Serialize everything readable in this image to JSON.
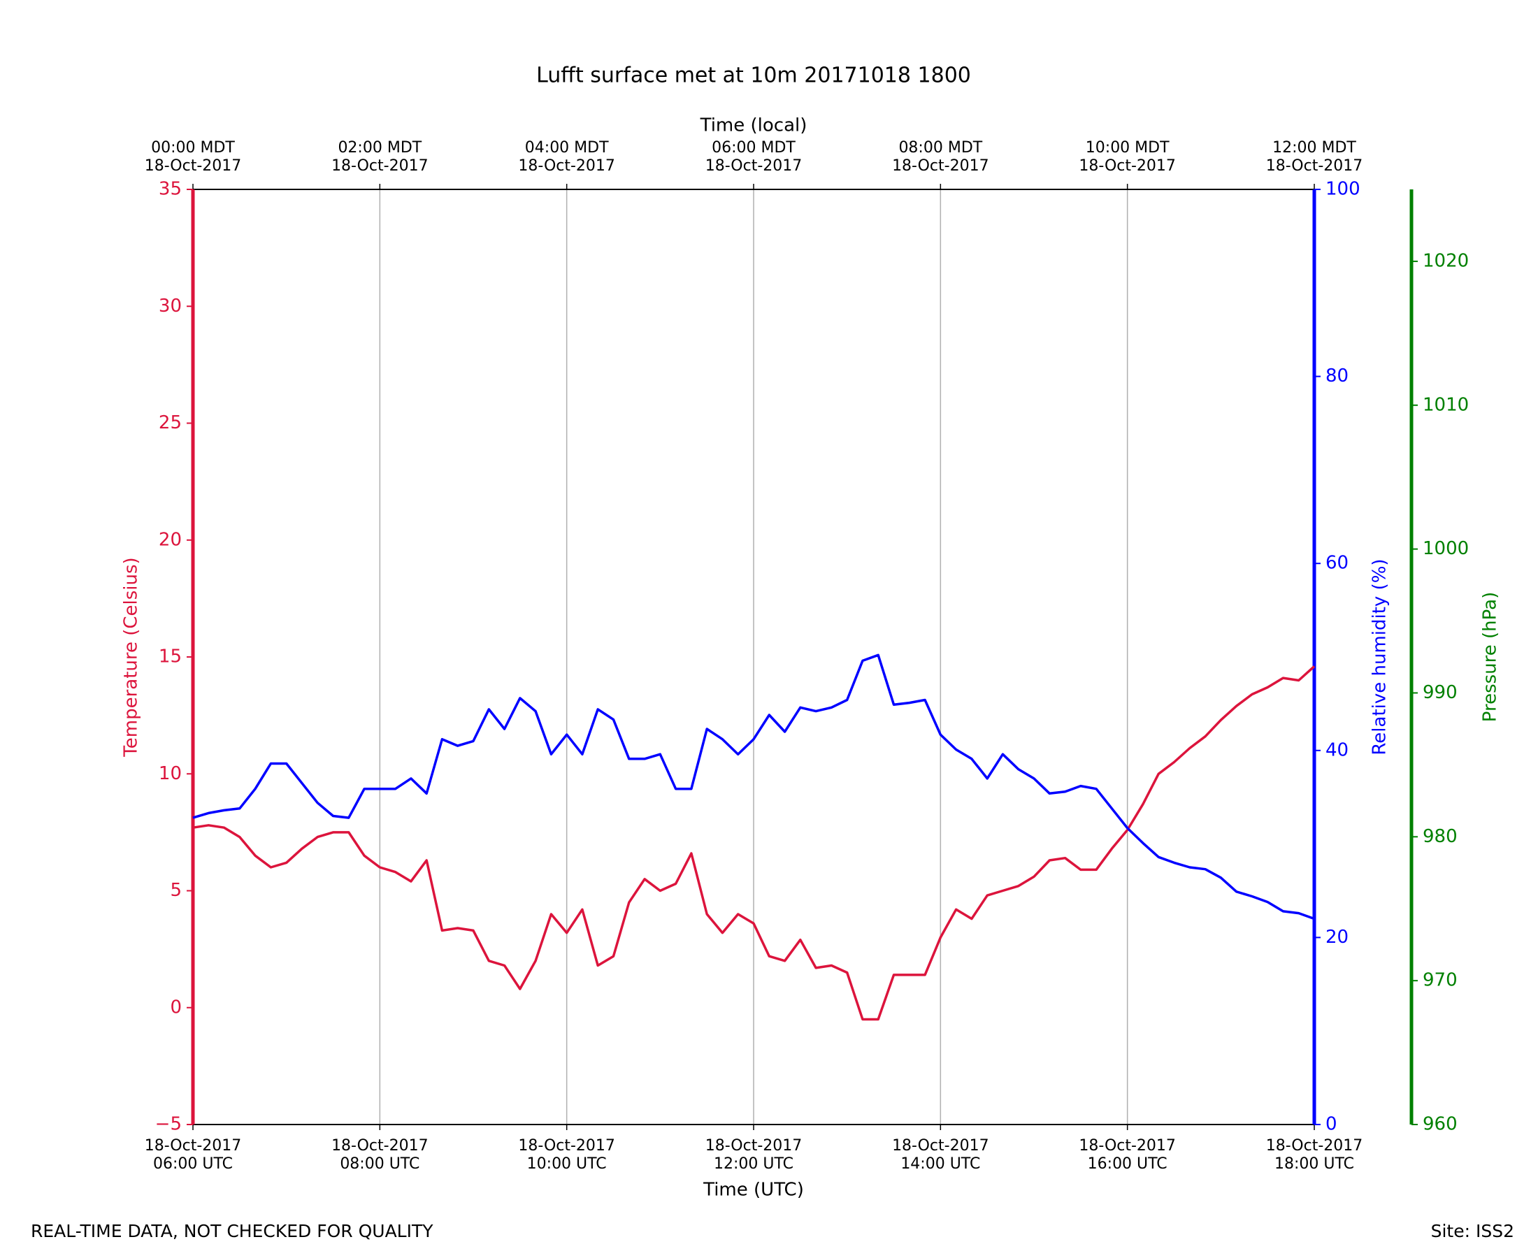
{
  "chart_data": {
    "type": "line",
    "title": "Lufft surface met at 10m 20171018 1800",
    "xlabel": "Time (UTC)",
    "x2label": "Time (local)",
    "ylabel": "Temperature (Celsius)",
    "y2label": "Relative humidity (%)",
    "y3label": "Pressure (hPa)",
    "ycolor": "#dc143c",
    "y2color": "#0000ff",
    "y3color": "#008000",
    "grid": true,
    "x": [
      "18-Oct-2017 06:00",
      "18-Oct-2017 06:10",
      "18-Oct-2017 06:20",
      "18-Oct-2017 06:30",
      "18-Oct-2017 06:40",
      "18-Oct-2017 06:50",
      "18-Oct-2017 07:00",
      "18-Oct-2017 07:10",
      "18-Oct-2017 07:20",
      "18-Oct-2017 07:30",
      "18-Oct-2017 07:40",
      "18-Oct-2017 07:50",
      "18-Oct-2017 08:00",
      "18-Oct-2017 08:10",
      "18-Oct-2017 08:20",
      "18-Oct-2017 08:30",
      "18-Oct-2017 08:40",
      "18-Oct-2017 08:50",
      "18-Oct-2017 09:00",
      "18-Oct-2017 09:10",
      "18-Oct-2017 09:20",
      "18-Oct-2017 09:30",
      "18-Oct-2017 09:40",
      "18-Oct-2017 09:50",
      "18-Oct-2017 10:00",
      "18-Oct-2017 10:10",
      "18-Oct-2017 10:20",
      "18-Oct-2017 10:30",
      "18-Oct-2017 10:40",
      "18-Oct-2017 10:50",
      "18-Oct-2017 11:00",
      "18-Oct-2017 11:10",
      "18-Oct-2017 11:20",
      "18-Oct-2017 11:30",
      "18-Oct-2017 11:40",
      "18-Oct-2017 11:50",
      "18-Oct-2017 12:00",
      "18-Oct-2017 12:10",
      "18-Oct-2017 12:20",
      "18-Oct-2017 12:30",
      "18-Oct-2017 12:40",
      "18-Oct-2017 12:50",
      "18-Oct-2017 13:00",
      "18-Oct-2017 13:10",
      "18-Oct-2017 13:20",
      "18-Oct-2017 13:30",
      "18-Oct-2017 13:40",
      "18-Oct-2017 13:50",
      "18-Oct-2017 14:00",
      "18-Oct-2017 14:10",
      "18-Oct-2017 14:20",
      "18-Oct-2017 14:30",
      "18-Oct-2017 14:40",
      "18-Oct-2017 14:50",
      "18-Oct-2017 15:00",
      "18-Oct-2017 15:10",
      "18-Oct-2017 15:20",
      "18-Oct-2017 15:30",
      "18-Oct-2017 15:40",
      "18-Oct-2017 15:50",
      "18-Oct-2017 16:00",
      "18-Oct-2017 16:10",
      "18-Oct-2017 16:20",
      "18-Oct-2017 16:30",
      "18-Oct-2017 16:40",
      "18-Oct-2017 16:50",
      "18-Oct-2017 17:00",
      "18-Oct-2017 17:10",
      "18-Oct-2017 17:20",
      "18-Oct-2017 17:30",
      "18-Oct-2017 17:40",
      "18-Oct-2017 17:50",
      "18-Oct-2017 18:00"
    ],
    "series": [
      {
        "name": "Temperature",
        "color": "#dc143c",
        "axis": "y",
        "values": [
          7.7,
          7.8,
          7.7,
          7.3,
          6.5,
          6.0,
          6.2,
          6.8,
          7.3,
          7.5,
          7.5,
          6.5,
          6.0,
          5.8,
          5.4,
          6.3,
          3.3,
          3.4,
          3.3,
          2.0,
          1.8,
          0.8,
          2.0,
          4.0,
          3.2,
          4.2,
          1.8,
          2.2,
          4.5,
          5.5,
          5.0,
          5.3,
          6.6,
          4.0,
          3.2,
          4.0,
          3.6,
          2.2,
          2.0,
          2.9,
          1.7,
          1.8,
          1.5,
          -0.5,
          -0.5,
          1.4,
          1.4,
          1.4,
          3.0,
          4.2,
          3.8,
          4.8,
          5.0,
          5.2,
          5.6,
          6.3,
          6.4,
          5.9,
          5.9,
          6.8,
          7.6,
          8.7,
          10.0,
          10.5,
          11.1,
          11.6,
          12.3,
          12.9,
          13.4,
          13.7,
          14.1,
          14.0,
          14.6
        ]
      },
      {
        "name": "Relative humidity",
        "color": "#0000ff",
        "axis": "y2",
        "values": [
          32.8,
          33.3,
          33.6,
          33.8,
          35.9,
          38.6,
          38.6,
          36.5,
          34.4,
          33.0,
          32.8,
          35.9,
          35.9,
          35.9,
          37.0,
          35.4,
          41.2,
          40.5,
          41.0,
          44.4,
          42.3,
          45.6,
          44.2,
          39.6,
          41.7,
          39.6,
          44.4,
          43.3,
          39.1,
          39.1,
          39.6,
          35.9,
          35.9,
          42.3,
          41.2,
          39.6,
          41.2,
          43.8,
          42.0,
          44.6,
          44.2,
          44.6,
          45.4,
          49.6,
          50.2,
          44.9,
          45.1,
          45.4,
          41.7,
          40.1,
          39.1,
          37.0,
          39.6,
          38.0,
          37.0,
          35.4,
          35.6,
          36.2,
          35.9,
          33.8,
          31.7,
          30.1,
          28.6,
          28.0,
          27.5,
          27.3,
          26.4,
          24.9,
          24.4,
          23.8,
          22.8,
          22.6,
          22.0
        ]
      }
    ],
    "xlim": [
      "18-Oct-2017 06:00",
      "18-Oct-2017 18:00"
    ],
    "xticks": [
      {
        "value": "18-Oct-2017 06:00",
        "label": [
          "18-Oct-2017",
          "06:00 UTC"
        ]
      },
      {
        "value": "18-Oct-2017 08:00",
        "label": [
          "18-Oct-2017",
          "08:00 UTC"
        ]
      },
      {
        "value": "18-Oct-2017 10:00",
        "label": [
          "18-Oct-2017",
          "10:00 UTC"
        ]
      },
      {
        "value": "18-Oct-2017 12:00",
        "label": [
          "18-Oct-2017",
          "12:00 UTC"
        ]
      },
      {
        "value": "18-Oct-2017 14:00",
        "label": [
          "18-Oct-2017",
          "14:00 UTC"
        ]
      },
      {
        "value": "18-Oct-2017 16:00",
        "label": [
          "18-Oct-2017",
          "16:00 UTC"
        ]
      },
      {
        "value": "18-Oct-2017 18:00",
        "label": [
          "18-Oct-2017",
          "18:00 UTC"
        ]
      }
    ],
    "x2ticks": [
      {
        "value": "18-Oct-2017 06:00",
        "label": [
          "00:00 MDT",
          "18-Oct-2017"
        ]
      },
      {
        "value": "18-Oct-2017 08:00",
        "label": [
          "02:00 MDT",
          "18-Oct-2017"
        ]
      },
      {
        "value": "18-Oct-2017 10:00",
        "label": [
          "04:00 MDT",
          "18-Oct-2017"
        ]
      },
      {
        "value": "18-Oct-2017 12:00",
        "label": [
          "06:00 MDT",
          "18-Oct-2017"
        ]
      },
      {
        "value": "18-Oct-2017 14:00",
        "label": [
          "08:00 MDT",
          "18-Oct-2017"
        ]
      },
      {
        "value": "18-Oct-2017 16:00",
        "label": [
          "10:00 MDT",
          "18-Oct-2017"
        ]
      },
      {
        "value": "18-Oct-2017 18:00",
        "label": [
          "12:00 MDT",
          "18-Oct-2017"
        ]
      }
    ],
    "ylim": [
      -5,
      35
    ],
    "yticks": [
      {
        "value": -5,
        "label": "−5"
      },
      0,
      5,
      10,
      15,
      20,
      25,
      30,
      35
    ],
    "y2lim": [
      0,
      100
    ],
    "y2ticks": [
      0,
      20,
      40,
      60,
      80,
      100
    ],
    "y3lim": [
      960,
      1025
    ],
    "y3ticks": [
      960,
      970,
      980,
      990,
      1000,
      1010,
      1020
    ],
    "footer_left": "REAL-TIME DATA, NOT CHECKED FOR QUALITY",
    "footer_right": "Site: ISS2"
  }
}
